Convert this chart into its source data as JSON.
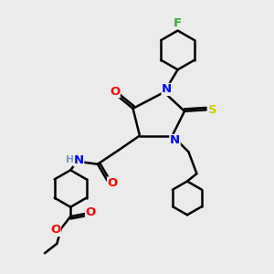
{
  "background_color": "#ebebeb",
  "atom_colors": {
    "N": "#0000ff",
    "O": "#ff0000",
    "S": "#cccc00",
    "F": "#33aa33",
    "H": "#7799bb",
    "C": "#000000"
  },
  "bond_color": "#000000",
  "bond_width": 1.8
}
